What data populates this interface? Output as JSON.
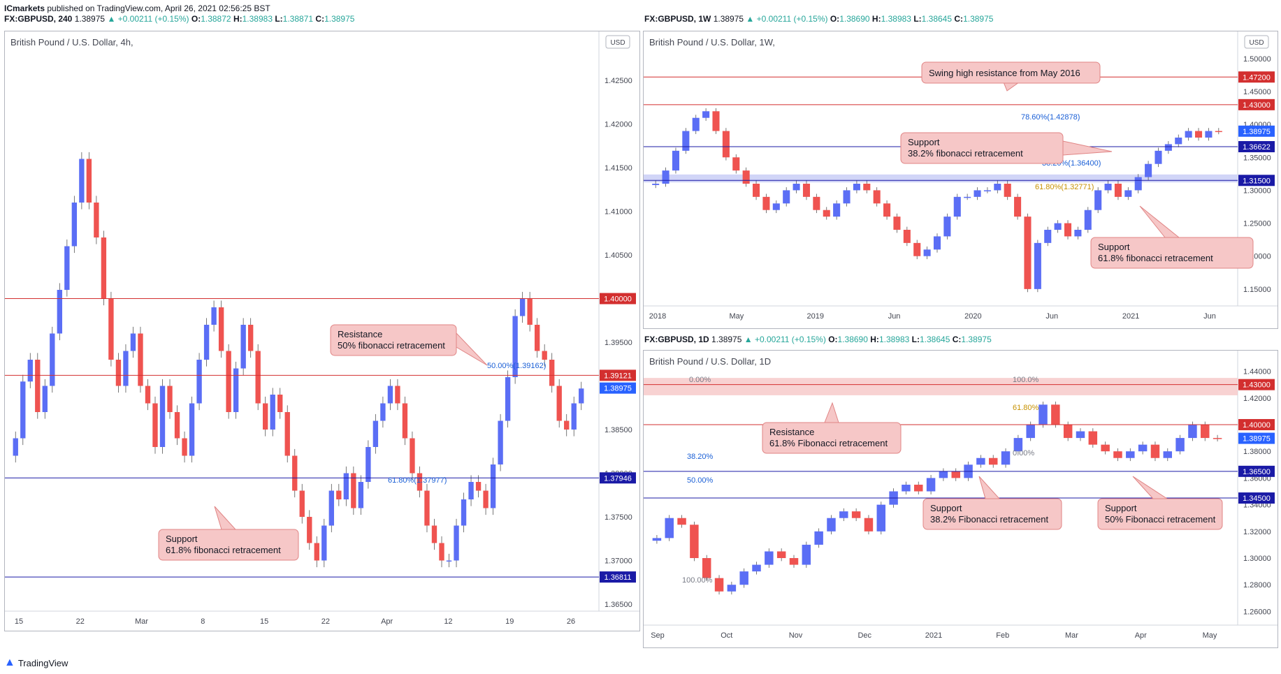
{
  "header": {
    "publisher": "ICmarkets",
    "published_text": " published on TradingView.com, April 26, 2021 02:56:25 BST"
  },
  "footer": {
    "brand": "TradingView"
  },
  "colors": {
    "up": "#5b6ef5",
    "down": "#ef5350",
    "resistance": "#d32f2f",
    "support": "#1a1aa6",
    "callout_bg": "#f6c7c7",
    "callout_border": "#e08585"
  },
  "charts": [
    {
      "id": "4h",
      "legend": {
        "symbol": "FX:GBPUSD, 240",
        "last": "1.38975",
        "change": "▲ +0.00211 (+0.15%)",
        "o": "1.38872",
        "h": "1.38983",
        "l": "1.38871",
        "c": "1.38975"
      },
      "title": "British Pound / U.S. Dollar, 4h,",
      "currency": "USD",
      "chart_data": {
        "type": "candlestick",
        "ylim": [
          1.365,
          1.429
        ],
        "yticks": [
          "1.42500",
          "1.42000",
          "1.41500",
          "1.41000",
          "1.40500",
          "1.40000",
          "1.39500",
          "1.39000",
          "1.38500",
          "1.38000",
          "1.37500",
          "1.37000",
          "1.36500"
        ],
        "xticks": [
          "15",
          "22",
          "Mar",
          "8",
          "15",
          "22",
          "Apr",
          "12",
          "19",
          "26"
        ],
        "closes": [
          1.384,
          1.3905,
          1.393,
          1.387,
          1.39,
          1.396,
          1.401,
          1.406,
          1.411,
          1.416,
          1.411,
          1.407,
          1.4,
          1.393,
          1.39,
          1.394,
          1.396,
          1.39,
          1.388,
          1.383,
          1.39,
          1.387,
          1.384,
          1.382,
          1.388,
          1.393,
          1.397,
          1.399,
          1.394,
          1.387,
          1.392,
          1.397,
          1.394,
          1.388,
          1.385,
          1.389,
          1.387,
          1.382,
          1.378,
          1.375,
          1.372,
          1.37,
          1.374,
          1.378,
          1.377,
          1.38,
          1.376,
          1.379,
          1.383,
          1.386,
          1.388,
          1.39,
          1.388,
          1.384,
          1.38,
          1.378,
          1.374,
          1.372,
          1.37,
          1.37,
          1.374,
          1.377,
          1.379,
          1.378,
          1.376,
          1.381,
          1.386,
          1.391,
          1.398,
          1.4,
          1.397,
          1.394,
          1.393,
          1.39,
          1.386,
          1.385,
          1.388,
          1.3897
        ],
        "levels": [
          {
            "price": "1.40000",
            "kind": "resistance"
          },
          {
            "price": "1.39121",
            "kind": "resistance"
          },
          {
            "price": "1.38975",
            "kind": "last"
          },
          {
            "price": "1.37946",
            "kind": "support"
          },
          {
            "price": "1.36811",
            "kind": "support"
          }
        ],
        "fib_labels": [
          "50.00%(1.39162)",
          "61.80%(1.37977)"
        ],
        "annotations": [
          {
            "line1": "Resistance",
            "line2": "50% fibonacci retracement"
          },
          {
            "line1": "Support",
            "line2": "61.8% fibonacci retracement"
          }
        ]
      }
    },
    {
      "id": "1w",
      "legend": {
        "symbol": "FX:GBPUSD, 1W",
        "last": "1.38975",
        "change": "▲ +0.00211 (+0.15%)",
        "o": "1.38690",
        "h": "1.38983",
        "l": "1.38645",
        "c": "1.38975"
      },
      "title": "British Pound / U.S. Dollar, 1W,",
      "currency": "USD",
      "chart_data": {
        "type": "candlestick",
        "ylim": [
          1.135,
          1.52
        ],
        "yticks": [
          "1.50000",
          "1.45000",
          "1.40000",
          "1.35000",
          "1.30000",
          "1.25000",
          "1.20000",
          "1.15000"
        ],
        "xticks": [
          "2018",
          "May",
          "2019",
          "Jun",
          "2020",
          "Jun",
          "2021",
          "Jun"
        ],
        "closes": [
          1.31,
          1.33,
          1.36,
          1.39,
          1.41,
          1.42,
          1.39,
          1.35,
          1.33,
          1.31,
          1.29,
          1.27,
          1.28,
          1.3,
          1.31,
          1.29,
          1.27,
          1.26,
          1.28,
          1.3,
          1.31,
          1.3,
          1.28,
          1.26,
          1.24,
          1.22,
          1.2,
          1.21,
          1.23,
          1.26,
          1.29,
          1.29,
          1.3,
          1.3,
          1.31,
          1.29,
          1.26,
          1.15,
          1.22,
          1.24,
          1.25,
          1.23,
          1.24,
          1.27,
          1.3,
          1.31,
          1.29,
          1.3,
          1.32,
          1.34,
          1.36,
          1.37,
          1.38,
          1.39,
          1.38,
          1.39,
          1.3897
        ],
        "levels": [
          {
            "price": "1.47200",
            "kind": "resistance"
          },
          {
            "price": "1.43000",
            "kind": "resistance"
          },
          {
            "price": "1.38975",
            "kind": "last"
          },
          {
            "price": "1.36622",
            "kind": "support"
          },
          {
            "price": "1.31500",
            "kind": "support"
          }
        ],
        "fib_labels": [
          "78.60%(1.42878)",
          "38.20%(1.36400)",
          "61.80%(1.32771)"
        ],
        "annotations": [
          {
            "line1": "Swing high resistance from May 2016",
            "line2": ""
          },
          {
            "line1": "Support",
            "line2": "38.2% fibonacci retracement"
          },
          {
            "line1": "Support",
            "line2": "61.8% fibonacci retracement"
          }
        ]
      }
    },
    {
      "id": "1d",
      "legend": {
        "symbol": "FX:GBPUSD, 1D",
        "last": "1.38975",
        "change": "▲ +0.00211 (+0.15%)",
        "o": "1.38690",
        "h": "1.38983",
        "l": "1.38645",
        "c": "1.38975"
      },
      "title": "British Pound / U.S. Dollar, 1D",
      "currency": "",
      "chart_data": {
        "type": "candlestick",
        "ylim": [
          1.255,
          1.445
        ],
        "yticks": [
          "1.44000",
          "1.42000",
          "1.40000",
          "1.38000",
          "1.36000",
          "1.34000",
          "1.32000",
          "1.30000",
          "1.28000",
          "1.26000"
        ],
        "xticks": [
          "Sep",
          "Oct",
          "Nov",
          "Dec",
          "2021",
          "Feb",
          "Mar",
          "Apr",
          "May"
        ],
        "closes": [
          1.315,
          1.33,
          1.325,
          1.3,
          1.285,
          1.275,
          1.28,
          1.29,
          1.295,
          1.305,
          1.3,
          1.295,
          1.31,
          1.32,
          1.33,
          1.335,
          1.33,
          1.32,
          1.34,
          1.35,
          1.355,
          1.35,
          1.36,
          1.365,
          1.36,
          1.37,
          1.375,
          1.37,
          1.38,
          1.39,
          1.4,
          1.415,
          1.4,
          1.39,
          1.395,
          1.385,
          1.38,
          1.375,
          1.38,
          1.385,
          1.375,
          1.38,
          1.39,
          1.4,
          1.39,
          1.3897
        ],
        "levels": [
          {
            "price": "1.43000",
            "kind": "resistance"
          },
          {
            "price": "1.40000",
            "kind": "resistance"
          },
          {
            "price": "1.38975",
            "kind": "last"
          },
          {
            "price": "1.36500",
            "kind": "support"
          },
          {
            "price": "1.34500",
            "kind": "support"
          }
        ],
        "fib_labels": [
          "0.00%",
          "100.0%",
          "61.80%",
          "0.00%",
          "38.20%",
          "50.00%",
          "100.00%"
        ],
        "annotations": [
          {
            "line1": "Resistance",
            "line2": "61.8% Fibonacci retracement"
          },
          {
            "line1": "Support",
            "line2": "38.2% Fibonacci retracement"
          },
          {
            "line1": "Support",
            "line2": "50% Fibonacci retracement"
          }
        ]
      }
    }
  ]
}
